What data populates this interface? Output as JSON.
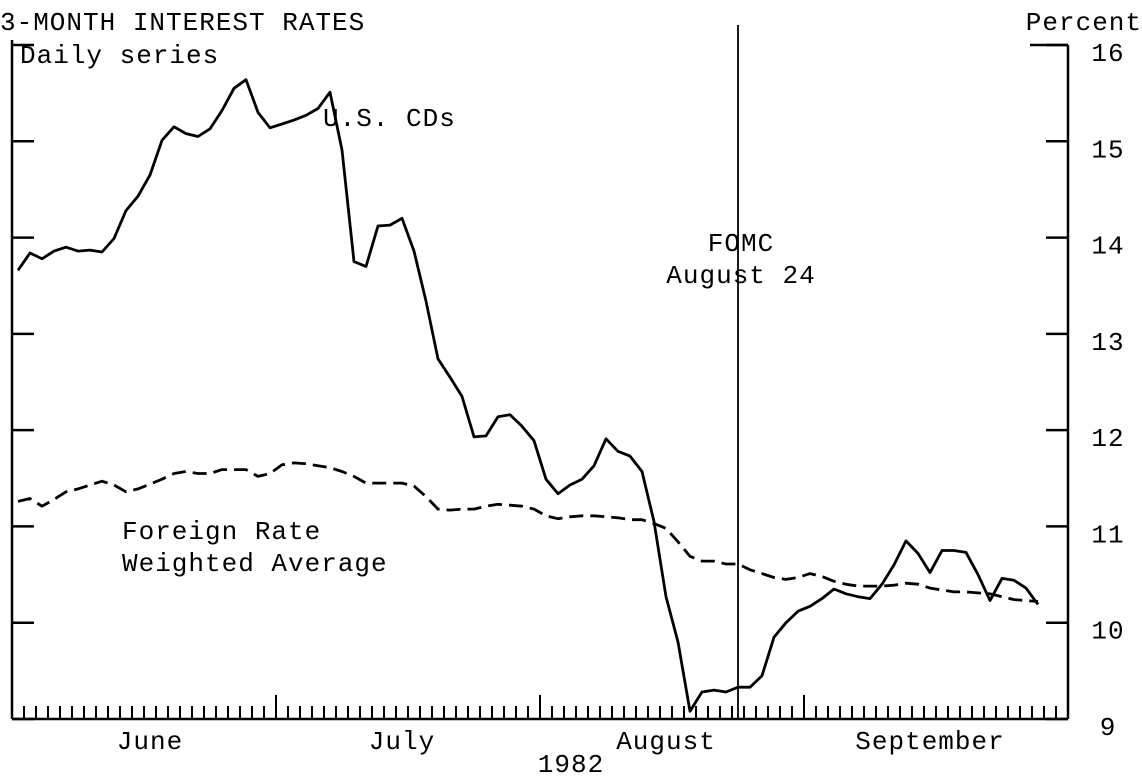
{
  "chart_data": {
    "type": "line",
    "title": "3-MONTH INTEREST RATES",
    "subtitle": "Daily series",
    "ylabel": "Percent",
    "xlabel": "1982",
    "categories": [
      null,
      null,
      null,
      null,
      null,
      null,
      null,
      null,
      null,
      null,
      null,
      "June",
      null,
      null,
      null,
      null,
      null,
      null,
      null,
      null,
      null,
      null,
      null,
      null,
      null,
      null,
      null,
      null,
      null,
      null,
      null,
      null,
      "July",
      null,
      null,
      null,
      null,
      null,
      null,
      null,
      null,
      null,
      null,
      null,
      null,
      null,
      null,
      null,
      null,
      null,
      null,
      null,
      null,
      null,
      "August",
      null,
      null,
      null,
      null,
      null,
      null,
      null,
      null,
      null,
      null,
      null,
      null,
      null,
      null,
      null,
      null,
      null,
      null,
      null,
      null,
      null,
      "September",
      null,
      null,
      null,
      null,
      null,
      null,
      null,
      null,
      null,
      null,
      null
    ],
    "ylim": [
      9,
      16
    ],
    "yticks": [
      9,
      10,
      11,
      12,
      13,
      14,
      15,
      16
    ],
    "series": [
      {
        "name": "U.S. CDs",
        "color": "#000000",
        "style": "solid",
        "values": [
          13.66,
          13.84,
          13.78,
          13.86,
          13.9,
          13.86,
          13.87,
          13.85,
          13.99,
          14.28,
          14.43,
          14.65,
          15.01,
          15.15,
          15.08,
          15.05,
          15.13,
          15.32,
          15.55,
          15.64,
          15.3,
          15.14,
          15.18,
          15.22,
          15.27,
          15.34,
          15.51,
          14.91,
          13.75,
          13.7,
          14.12,
          14.13,
          14.2,
          13.86,
          13.34,
          12.74,
          12.55,
          12.35,
          11.93,
          11.94,
          12.14,
          12.16,
          12.04,
          11.89,
          11.49,
          11.34,
          11.43,
          11.49,
          11.63,
          11.91,
          11.78,
          11.73,
          11.57,
          11.05,
          10.27,
          9.8,
          9.08,
          9.28,
          9.3,
          9.28,
          9.33,
          9.33,
          9.45,
          9.85,
          10.0,
          10.12,
          10.17,
          10.25,
          10.35,
          10.3,
          10.27,
          10.25,
          10.4,
          10.6,
          10.85,
          10.72,
          10.52,
          10.75,
          10.75,
          10.73,
          10.5,
          10.23,
          10.46,
          10.44,
          10.36,
          10.19,
          null,
          null
        ]
      },
      {
        "name": "Foreign Rate Weighted Average",
        "color": "#000000",
        "style": "dashed",
        "values": [
          11.26,
          11.29,
          11.21,
          11.28,
          11.36,
          11.39,
          11.43,
          11.47,
          11.43,
          11.36,
          11.39,
          11.44,
          11.49,
          11.55,
          11.57,
          11.55,
          11.55,
          11.59,
          11.59,
          11.59,
          11.52,
          11.55,
          11.64,
          11.66,
          11.65,
          11.63,
          11.61,
          11.57,
          11.52,
          11.45,
          11.45,
          11.45,
          11.45,
          11.42,
          11.31,
          11.18,
          11.17,
          11.18,
          11.18,
          11.21,
          11.23,
          11.22,
          11.21,
          11.18,
          11.11,
          11.08,
          11.1,
          11.11,
          11.11,
          11.1,
          11.09,
          11.07,
          11.07,
          11.03,
          10.98,
          10.84,
          10.69,
          10.64,
          10.64,
          10.61,
          10.61,
          10.55,
          10.51,
          10.47,
          10.45,
          10.47,
          10.51,
          10.48,
          10.43,
          10.4,
          10.38,
          10.38,
          10.38,
          10.39,
          10.41,
          10.4,
          10.36,
          10.34,
          10.32,
          10.32,
          10.31,
          10.3,
          10.27,
          10.24,
          10.23,
          10.22,
          null,
          null
        ]
      }
    ],
    "annotations": [
      {
        "text": "FOMC August 24",
        "x": 60
      }
    ]
  }
}
